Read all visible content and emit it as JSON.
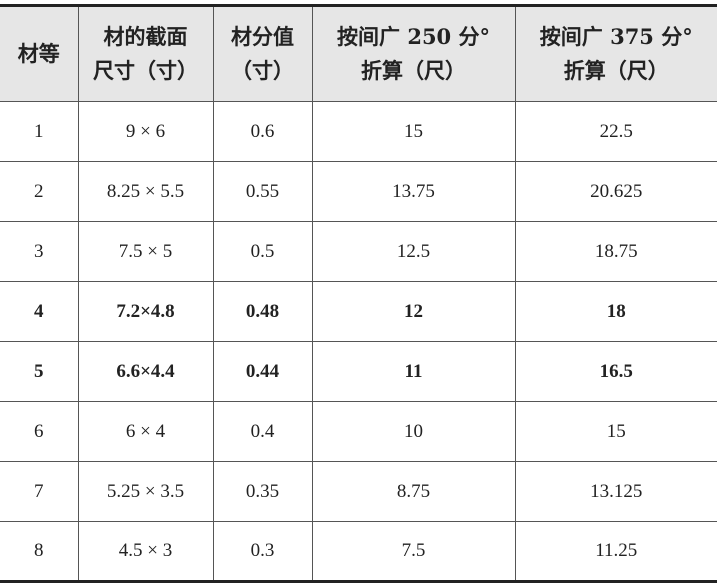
{
  "table": {
    "headers": [
      [
        "材等"
      ],
      [
        "材的截面",
        "尺寸（寸）"
      ],
      [
        "材分值",
        "（寸）"
      ],
      [
        "按间广 250 分°",
        "折算（尺）"
      ],
      [
        "按间广 375 分°",
        "折算（尺）"
      ]
    ],
    "rows": [
      {
        "bold": false,
        "cells": [
          "1",
          "9 × 6",
          "0.6",
          "15",
          "22.5"
        ]
      },
      {
        "bold": false,
        "cells": [
          "2",
          "8.25 × 5.5",
          "0.55",
          "13.75",
          "20.625"
        ]
      },
      {
        "bold": false,
        "cells": [
          "3",
          "7.5 × 5",
          "0.5",
          "12.5",
          "18.75"
        ]
      },
      {
        "bold": true,
        "cells": [
          "4",
          "7.2×4.8",
          "0.48",
          "12",
          "18"
        ]
      },
      {
        "bold": true,
        "cells": [
          "5",
          "6.6×4.4",
          "0.44",
          "11",
          "16.5"
        ]
      },
      {
        "bold": false,
        "cells": [
          "6",
          "6 × 4",
          "0.4",
          "10",
          "15"
        ]
      },
      {
        "bold": false,
        "cells": [
          "7",
          "5.25 × 3.5",
          "0.35",
          "8.75",
          "13.125"
        ]
      },
      {
        "bold": false,
        "cells": [
          "8",
          "4.5 × 3",
          "0.3",
          "7.5",
          "11.25"
        ]
      }
    ]
  }
}
